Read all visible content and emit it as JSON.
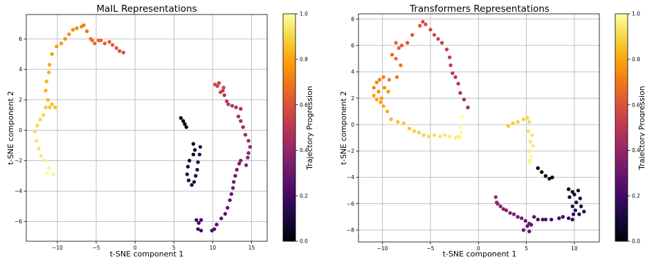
{
  "chart_data": [
    {
      "type": "scatter",
      "title": "MaIL Representations",
      "xlabel": "t-SNE component 1",
      "ylabel": "t-SNE component 2",
      "xlim": [
        -14,
        17
      ],
      "ylim": [
        -7.3,
        7.6
      ],
      "xticks": [
        -10,
        -5,
        0,
        5,
        10,
        15
      ],
      "yticks": [
        -6,
        -4,
        -2,
        0,
        2,
        4,
        6
      ],
      "grid": true,
      "colorbar": {
        "label": "Trajectory Progression",
        "ticks": [
          "0.0",
          "0.2",
          "0.4",
          "0.6",
          "0.8",
          "1.0"
        ],
        "colormap": "inferno"
      },
      "points": [
        [
          5.9,
          0.8,
          0.0
        ],
        [
          6.2,
          0.6,
          0.01
        ],
        [
          6.4,
          0.4,
          0.02
        ],
        [
          6.6,
          0.2,
          0.03
        ],
        [
          7.5,
          -0.9,
          0.04
        ],
        [
          7.7,
          -1.3,
          0.05
        ],
        [
          7.5,
          -1.6,
          0.06
        ],
        [
          7.0,
          -2.0,
          0.07
        ],
        [
          6.8,
          -2.4,
          0.08
        ],
        [
          6.7,
          -2.9,
          0.09
        ],
        [
          6.9,
          -3.3,
          0.1
        ],
        [
          7.3,
          -3.6,
          0.11
        ],
        [
          7.6,
          -3.4,
          0.12
        ],
        [
          7.8,
          -3.0,
          0.13
        ],
        [
          8.0,
          -2.6,
          0.14
        ],
        [
          8.1,
          -2.1,
          0.15
        ],
        [
          8.3,
          -1.6,
          0.16
        ],
        [
          8.4,
          -1.1,
          0.17
        ],
        [
          7.9,
          -5.9,
          0.18
        ],
        [
          8.2,
          -6.1,
          0.19
        ],
        [
          8.5,
          -5.9,
          0.2
        ],
        [
          8.1,
          -6.5,
          0.21
        ],
        [
          8.5,
          -6.6,
          0.22
        ],
        [
          9.9,
          -6.6,
          0.23
        ],
        [
          10.2,
          -6.5,
          0.24
        ],
        [
          10.5,
          -6.2,
          0.25
        ],
        [
          11.1,
          -5.8,
          0.26
        ],
        [
          11.6,
          -5.5,
          0.27
        ],
        [
          11.9,
          -5.1,
          0.28
        ],
        [
          12.2,
          -4.6,
          0.29
        ],
        [
          12.4,
          -4.2,
          0.3
        ],
        [
          12.6,
          -3.8,
          0.31
        ],
        [
          12.7,
          -3.4,
          0.32
        ],
        [
          12.9,
          -3.0,
          0.33
        ],
        [
          13.1,
          -2.6,
          0.34
        ],
        [
          13.4,
          -2.2,
          0.35
        ],
        [
          13.6,
          -2.0,
          0.36
        ],
        [
          14.3,
          -2.3,
          0.37
        ],
        [
          14.5,
          -1.8,
          0.38
        ],
        [
          14.6,
          -1.5,
          0.39
        ],
        [
          14.8,
          -1.1,
          0.4
        ],
        [
          14.6,
          -0.7,
          0.41
        ],
        [
          14.2,
          -0.3,
          0.42
        ],
        [
          13.9,
          0.2,
          0.43
        ],
        [
          13.6,
          0.6,
          0.44
        ],
        [
          13.3,
          0.9,
          0.45
        ],
        [
          13.6,
          1.4,
          0.46
        ],
        [
          13.0,
          1.5,
          0.47
        ],
        [
          12.5,
          1.6,
          0.48
        ],
        [
          12.0,
          1.7,
          0.49
        ],
        [
          11.8,
          1.9,
          0.5
        ],
        [
          11.5,
          2.3,
          0.51
        ],
        [
          11.3,
          2.6,
          0.52
        ],
        [
          11.0,
          2.5,
          0.53
        ],
        [
          10.8,
          3.1,
          0.54
        ],
        [
          10.6,
          2.9,
          0.55
        ],
        [
          10.3,
          3.0,
          0.56
        ],
        [
          11.4,
          2.8,
          0.57
        ],
        [
          -1.5,
          5.1,
          0.59
        ],
        [
          -2.0,
          5.2,
          0.6
        ],
        [
          -2.4,
          5.4,
          0.61
        ],
        [
          -2.9,
          5.6,
          0.62
        ],
        [
          -3.3,
          5.8,
          0.63
        ],
        [
          -3.9,
          5.7,
          0.64
        ],
        [
          -4.4,
          5.9,
          0.65
        ],
        [
          -4.7,
          5.9,
          0.66
        ],
        [
          -5.2,
          5.7,
          0.67
        ],
        [
          -5.5,
          5.9,
          0.68
        ],
        [
          -5.7,
          6.0,
          0.69
        ],
        [
          -6.2,
          6.5,
          0.7
        ],
        [
          -6.6,
          6.9,
          0.71
        ],
        [
          -6.9,
          6.8,
          0.72
        ],
        [
          -7.5,
          6.7,
          0.73
        ],
        [
          -8.0,
          6.6,
          0.74
        ],
        [
          -8.5,
          6.3,
          0.75
        ],
        [
          -9.0,
          6.0,
          0.76
        ],
        [
          -9.5,
          5.7,
          0.77
        ],
        [
          -10.1,
          5.5,
          0.78
        ],
        [
          -10.7,
          5.0,
          0.79
        ],
        [
          -11.0,
          4.3,
          0.8
        ],
        [
          -11.1,
          3.8,
          0.81
        ],
        [
          -11.4,
          3.2,
          0.82
        ],
        [
          -11.5,
          2.6,
          0.83
        ],
        [
          -11.2,
          2.0,
          0.84
        ],
        [
          -10.7,
          1.7,
          0.85
        ],
        [
          -10.3,
          1.5,
          0.86
        ],
        [
          -11.0,
          1.5,
          0.87
        ],
        [
          -11.5,
          1.5,
          0.88
        ],
        [
          -11.8,
          1.0,
          0.89
        ],
        [
          -12.2,
          0.7,
          0.9
        ],
        [
          -12.6,
          0.3,
          0.91
        ],
        [
          -12.9,
          -0.1,
          0.92
        ],
        [
          -12.7,
          -0.7,
          0.93
        ],
        [
          -12.4,
          -1.2,
          0.94
        ],
        [
          -12.1,
          -1.7,
          0.95
        ],
        [
          -11.6,
          -2.0,
          0.96
        ],
        [
          -11.1,
          -2.5,
          0.97
        ],
        [
          -10.5,
          -2.9,
          0.98
        ],
        [
          -11.3,
          -2.8,
          0.99
        ]
      ]
    },
    {
      "type": "scatter",
      "title": "Transformers Representations",
      "xlabel": "t-SNE component 1",
      "ylabel": "t-SNE component 2",
      "xlim": [
        -12.5,
        12.6
      ],
      "ylim": [
        -8.9,
        8.4
      ],
      "xticks": [
        -10,
        -5,
        0,
        5,
        10
      ],
      "yticks": [
        -8,
        -6,
        -4,
        -2,
        0,
        2,
        4,
        6,
        8
      ],
      "grid": true,
      "colorbar": {
        "label": "Trajectory Progression",
        "ticks": [
          "0.0",
          "0.2",
          "0.4",
          "0.6",
          "0.8",
          "1.0"
        ],
        "colormap": "inferno"
      },
      "points": [
        [
          6.2,
          -3.3,
          0.0
        ],
        [
          6.6,
          -3.6,
          0.01
        ],
        [
          7.0,
          -3.9,
          0.02
        ],
        [
          7.4,
          -4.1,
          0.03
        ],
        [
          7.7,
          -4.0,
          0.04
        ],
        [
          9.4,
          -4.9,
          0.05
        ],
        [
          9.8,
          -5.1,
          0.06
        ],
        [
          9.5,
          -5.5,
          0.07
        ],
        [
          10.0,
          -5.3,
          0.08
        ],
        [
          10.4,
          -5.0,
          0.09
        ],
        [
          10.6,
          -5.6,
          0.1
        ],
        [
          10.2,
          -5.9,
          0.11
        ],
        [
          10.7,
          -6.2,
          0.12
        ],
        [
          11.0,
          -6.6,
          0.13
        ],
        [
          10.5,
          -6.8,
          0.14
        ],
        [
          10.1,
          -6.5,
          0.15
        ],
        [
          9.8,
          -6.2,
          0.16
        ],
        [
          9.9,
          -6.8,
          0.17
        ],
        [
          9.8,
          -7.2,
          0.18
        ],
        [
          9.4,
          -7.1,
          0.19
        ],
        [
          8.8,
          -7.0,
          0.2
        ],
        [
          8.4,
          -7.1,
          0.21
        ],
        [
          7.6,
          -7.2,
          0.22
        ],
        [
          7.0,
          -7.2,
          0.23
        ],
        [
          6.7,
          -7.2,
          0.24
        ],
        [
          6.2,
          -7.2,
          0.25
        ],
        [
          5.8,
          -7.0,
          0.26
        ],
        [
          5.5,
          -7.6,
          0.27
        ],
        [
          5.3,
          -8.1,
          0.28
        ],
        [
          5.1,
          -7.7,
          0.29
        ],
        [
          4.9,
          -7.3,
          0.3
        ],
        [
          5.3,
          -7.5,
          0.31
        ],
        [
          4.7,
          -8.0,
          0.32
        ],
        [
          4.5,
          -7.1,
          0.33
        ],
        [
          4.1,
          -7.0,
          0.34
        ],
        [
          3.7,
          -6.8,
          0.35
        ],
        [
          3.3,
          -6.7,
          0.36
        ],
        [
          2.9,
          -6.5,
          0.37
        ],
        [
          2.6,
          -6.4,
          0.38
        ],
        [
          2.3,
          -6.2,
          0.39
        ],
        [
          2.0,
          -6.0,
          0.4
        ],
        [
          1.8,
          -5.5,
          0.41
        ],
        [
          1.9,
          -5.9,
          0.42
        ],
        [
          -1.1,
          1.3,
          0.45
        ],
        [
          -1.5,
          1.9,
          0.46
        ],
        [
          -1.9,
          2.4,
          0.47
        ],
        [
          -2.1,
          3.1,
          0.48
        ],
        [
          -2.4,
          3.6,
          0.49
        ],
        [
          -2.7,
          3.9,
          0.5
        ],
        [
          -2.9,
          4.5,
          0.51
        ],
        [
          -3.0,
          5.1,
          0.52
        ],
        [
          -3.3,
          5.7,
          0.53
        ],
        [
          -3.8,
          6.2,
          0.54
        ],
        [
          -4.2,
          6.5,
          0.55
        ],
        [
          -4.6,
          6.8,
          0.56
        ],
        [
          -5.0,
          7.2,
          0.57
        ],
        [
          -5.5,
          7.6,
          0.58
        ],
        [
          -5.8,
          7.8,
          0.59
        ],
        [
          -6.1,
          7.5,
          0.6
        ],
        [
          -6.9,
          6.8,
          0.61
        ],
        [
          -7.4,
          6.2,
          0.62
        ],
        [
          -8.0,
          6.0,
          0.63
        ],
        [
          -8.3,
          5.8,
          0.64
        ],
        [
          -8.6,
          6.2,
          0.65
        ],
        [
          -9.0,
          5.3,
          0.66
        ],
        [
          -8.6,
          5.0,
          0.67
        ],
        [
          -8.1,
          4.5,
          0.68
        ],
        [
          -8.5,
          3.6,
          0.69
        ],
        [
          -9.3,
          3.4,
          0.7
        ],
        [
          -9.9,
          3.6,
          0.71
        ],
        [
          -10.3,
          3.4,
          0.72
        ],
        [
          -10.6,
          3.2,
          0.73
        ],
        [
          -10.9,
          2.8,
          0.74
        ],
        [
          -10.4,
          2.5,
          0.75
        ],
        [
          -9.8,
          2.8,
          0.76
        ],
        [
          -9.4,
          2.5,
          0.77
        ],
        [
          -10.1,
          2.0,
          0.78
        ],
        [
          -10.6,
          1.9,
          0.79
        ],
        [
          -10.9,
          2.2,
          0.8
        ],
        [
          -10.2,
          1.7,
          0.81
        ],
        [
          -9.9,
          1.4,
          0.82
        ],
        [
          -9.5,
          1.0,
          0.83
        ],
        [
          -9.1,
          0.4,
          0.84
        ],
        [
          -8.4,
          0.2,
          0.85
        ],
        [
          -7.8,
          0.1,
          0.86
        ],
        [
          -7.2,
          -0.3,
          0.87
        ],
        [
          -6.7,
          -0.5,
          0.88
        ],
        [
          -6.2,
          -0.6,
          0.89
        ],
        [
          -5.7,
          -0.8,
          0.9
        ],
        [
          -5.2,
          -0.9,
          0.91
        ],
        [
          -4.6,
          -0.8,
          0.92
        ],
        [
          -4.0,
          -0.9,
          0.93
        ],
        [
          -3.5,
          -0.8,
          0.94
        ],
        [
          -3.0,
          -0.9,
          0.95
        ],
        [
          -2.4,
          -1.0,
          0.96
        ],
        [
          -2.1,
          -0.9,
          0.97
        ],
        [
          -1.9,
          -1.0,
          0.98
        ],
        [
          -1.8,
          -0.6,
          0.985
        ],
        [
          -1.9,
          -0.2,
          0.99
        ],
        [
          -1.7,
          0.6,
          0.995
        ],
        [
          3.1,
          -0.1,
          0.86
        ],
        [
          3.6,
          0.1,
          0.87
        ],
        [
          4.1,
          0.2,
          0.88
        ],
        [
          4.7,
          0.4,
          0.89
        ],
        [
          5.1,
          0.5,
          0.9
        ],
        [
          5.3,
          0.2,
          0.91
        ],
        [
          5.2,
          -0.5,
          0.92
        ],
        [
          5.6,
          -0.8,
          0.93
        ],
        [
          5.4,
          -1.3,
          0.94
        ],
        [
          5.7,
          -1.6,
          0.95
        ],
        [
          5.3,
          -2.0,
          0.96
        ],
        [
          5.4,
          -2.7,
          0.97
        ],
        [
          5.3,
          -2.9,
          0.98
        ],
        [
          5.5,
          -2.4,
          0.99
        ]
      ]
    }
  ]
}
